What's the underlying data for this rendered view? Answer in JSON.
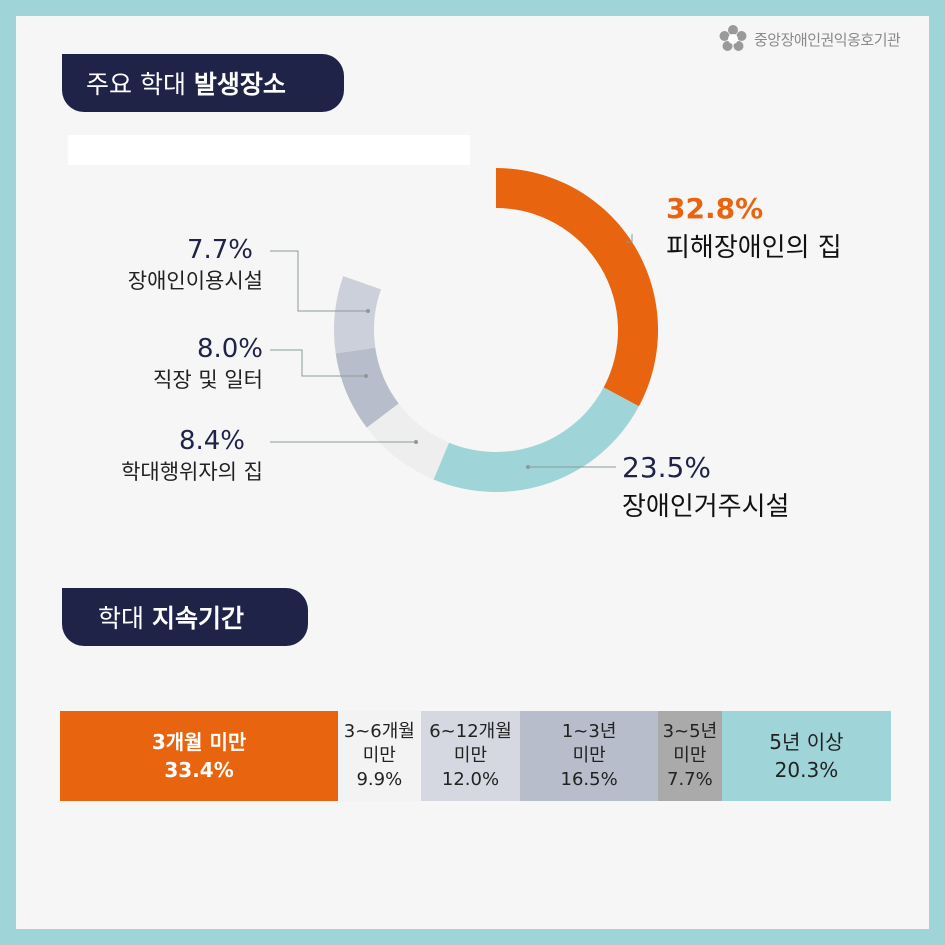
{
  "logo": {
    "text": "중앙장애인권익옹호기관",
    "icon": "flower-emblem-icon"
  },
  "section1": {
    "title_normal": "주요 학대 ",
    "title_bold": "발생장소"
  },
  "section2": {
    "title_normal": "학대 ",
    "title_bold": "지속기간"
  },
  "colors": {
    "orange": "#e8640f",
    "teal": "#9fd4d9",
    "navy": "#1f2347"
  },
  "chart_data": [
    {
      "type": "pie",
      "categories": [
        "피해장애인의 집",
        "장애인거주시설",
        "학대행위자의 집",
        "직장 및 일터",
        "장애인이용시설"
      ],
      "values": [
        32.8,
        23.5,
        8.4,
        8.0,
        7.7
      ],
      "labels": [
        "32.8%",
        "23.5%",
        "8.4%",
        "8.0%",
        "7.7%"
      ],
      "colors": [
        "#e8640f",
        "#9fd4d9",
        "#eeeeee",
        "#b8bdcc",
        "#ccd0db"
      ]
    },
    {
      "type": "bar",
      "categories": [
        "3개월 미만",
        "3~6개월 미만",
        "6~12개월 미만",
        "1~3년 미만",
        "3~5년 미만",
        "5년 이상"
      ],
      "values": [
        33.4,
        9.9,
        12.0,
        16.5,
        7.7,
        20.3
      ],
      "labels": [
        "33.4%",
        "9.9%",
        "12.0%",
        "16.5%",
        "7.7%",
        "20.3%"
      ],
      "label_lines": [
        [
          "3개월 미만"
        ],
        [
          "3~6개월",
          "미만"
        ],
        [
          "6~12개월",
          "미만"
        ],
        [
          "1~3년",
          "미만"
        ],
        [
          "3~5년",
          "미만"
        ],
        [
          "5년 이상"
        ]
      ],
      "colors": [
        "#e8640f",
        "#f3f3f3",
        "#d5d8e1",
        "#b8bdcc",
        "#aaaaaa",
        "#9fd4d9"
      ]
    }
  ]
}
